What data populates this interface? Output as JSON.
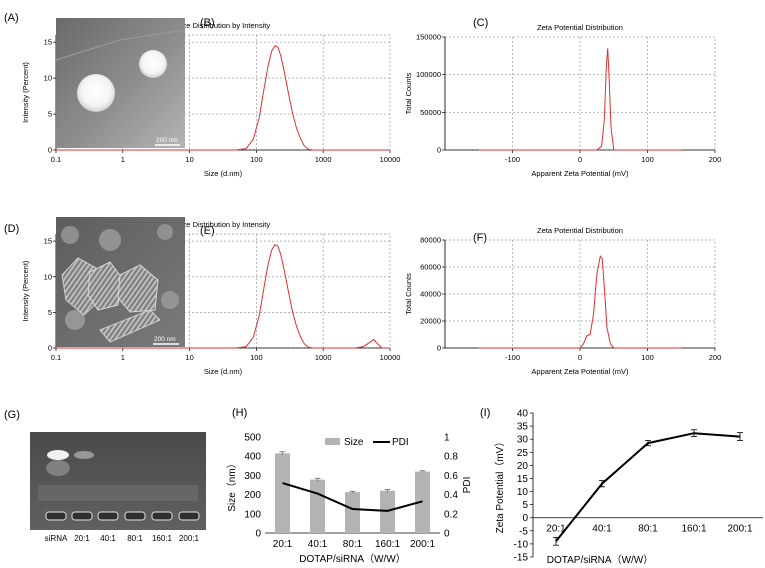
{
  "panels": [
    {
      "id": "A",
      "label": "(A)"
    },
    {
      "id": "B",
      "label": "(B)"
    },
    {
      "id": "C",
      "label": "(C)"
    },
    {
      "id": "D",
      "label": "(D)"
    },
    {
      "id": "E",
      "label": "(E)"
    },
    {
      "id": "F",
      "label": "(F)"
    },
    {
      "id": "G",
      "label": "(G)"
    },
    {
      "id": "H",
      "label": "(H)"
    },
    {
      "id": "I",
      "label": "(I)"
    }
  ],
  "micrographs": [
    {
      "panel": "A",
      "scale_bar": "200  nm"
    },
    {
      "panel": "D",
      "scale_bar": "200  nm"
    }
  ],
  "gel": {
    "lanes": [
      "siRNA",
      "20:1",
      "40:1",
      "80:1",
      "160:1",
      "200:1"
    ]
  },
  "chart_data": [
    {
      "panel": "A-B",
      "type": "line",
      "title": "Size Distribution by Intensity",
      "xlabel": "Size (d.nm)",
      "ylabel": "Intensity (Percent)",
      "xscale": "log",
      "xlim": [
        0.1,
        10000
      ],
      "ylim": [
        0,
        16
      ],
      "xticks": [
        "0.1",
        "1",
        "10",
        "100",
        "1000",
        "10000"
      ],
      "yticks": [
        "0",
        "5",
        "10",
        "15"
      ],
      "grid": true,
      "series": [
        {
          "color": "#e03030",
          "x": [
            0.1,
            50,
            70,
            90,
            110,
            130,
            150,
            170,
            190,
            210,
            230,
            260,
            300,
            350,
            400,
            460,
            520,
            600,
            700,
            10000
          ],
          "y": [
            0,
            0,
            0.2,
            1.5,
            4.5,
            8.5,
            11.8,
            13.8,
            14.5,
            14.3,
            13.2,
            11.0,
            8.0,
            5.0,
            3.0,
            1.5,
            0.6,
            0.1,
            0,
            0
          ]
        }
      ]
    },
    {
      "panel": "C",
      "type": "line",
      "title": "Zeta Potential Distribution",
      "xlabel": "Apparent Zeta Potential (mV)",
      "ylabel": "Total Counts",
      "xlim": [
        -200,
        200
      ],
      "ylim": [
        0,
        150000
      ],
      "xticks": [
        "-100",
        "0",
        "100",
        "200"
      ],
      "yticks": [
        "0",
        "50000",
        "100000",
        "150000"
      ],
      "grid": true,
      "series": [
        {
          "color": "#e03030",
          "x": [
            -150,
            25,
            32,
            36,
            39,
            41,
            43,
            46,
            50,
            150
          ],
          "y": [
            0,
            0,
            5000,
            40000,
            110000,
            135000,
            100000,
            30000,
            0,
            0
          ]
        }
      ]
    },
    {
      "panel": "D-E",
      "type": "line",
      "title": "Size Distribution by Intensity",
      "xlabel": "Size (d.nm)",
      "ylabel": "Intensity (Percent)",
      "xscale": "log",
      "xlim": [
        0.1,
        10000
      ],
      "ylim": [
        0,
        16
      ],
      "xticks": [
        "0.1",
        "1",
        "10",
        "100",
        "1000",
        "10000"
      ],
      "yticks": [
        "0",
        "5",
        "10",
        "15"
      ],
      "grid": true,
      "series": [
        {
          "color": "#e03030",
          "x": [
            0.1,
            50,
            70,
            90,
            110,
            130,
            150,
            170,
            190,
            210,
            230,
            260,
            300,
            350,
            400,
            460,
            520,
            600,
            700,
            3000,
            4000,
            5000,
            5700,
            6500,
            7500,
            10000
          ],
          "y": [
            0,
            0,
            0.2,
            1.5,
            4.5,
            8.5,
            11.8,
            13.8,
            14.5,
            14.3,
            13.2,
            11.0,
            8.0,
            5.0,
            3.0,
            1.5,
            0.6,
            0.1,
            0,
            0,
            0.2,
            0.8,
            1.2,
            0.6,
            0,
            0
          ]
        }
      ]
    },
    {
      "panel": "F",
      "type": "line",
      "title": "Zeta Potential Distribution",
      "xlabel": "Apparent Zeta Potential (mV)",
      "ylabel": "Total Counts",
      "xlim": [
        -200,
        200
      ],
      "ylim": [
        0,
        80000
      ],
      "xticks": [
        "-100",
        "0",
        "100",
        "200"
      ],
      "yticks": [
        "0",
        "20000",
        "40000",
        "60000",
        "80000"
      ],
      "grid": true,
      "series": [
        {
          "color": "#e03030",
          "x": [
            -150,
            0,
            5,
            10,
            15,
            20,
            25,
            30,
            33,
            36,
            40,
            45,
            50,
            150
          ],
          "y": [
            0,
            0,
            3000,
            9000,
            10000,
            25000,
            55000,
            68000,
            66000,
            45000,
            15000,
            3000,
            0,
            0
          ]
        }
      ]
    },
    {
      "panel": "H",
      "type": "bar",
      "xlabel": "DOTAP/siRNA（W/W）",
      "ylabel": "Size（nm）",
      "y2label": "PDI",
      "categories": [
        "20:1",
        "40:1",
        "80:1",
        "160:1",
        "200:1"
      ],
      "ylim": [
        0,
        500
      ],
      "yticks": [
        "0",
        "50",
        "100",
        "150",
        "200",
        "250",
        "300",
        "350",
        "400",
        "450",
        "500"
      ],
      "y2lim": [
        0,
        1
      ],
      "y2ticks": [
        "0",
        "0.2",
        "0.4",
        "0.6",
        "0.8",
        "1"
      ],
      "legend": "top",
      "series": [
        {
          "name": "Size",
          "type": "bar",
          "color": "#b3b3b3",
          "values": [
            415,
            278,
            213,
            220,
            320
          ],
          "errors": [
            8,
            7,
            4,
            7,
            4
          ]
        },
        {
          "name": "PDI",
          "type": "line",
          "color": "#000000",
          "axis": "y2",
          "values": [
            0.52,
            0.41,
            0.25,
            0.23,
            0.33
          ]
        }
      ]
    },
    {
      "panel": "I",
      "type": "line",
      "xlabel": "DOTAP/siRNA（W/W）",
      "ylabel": "Zeta Potential（mV）",
      "categories": [
        "20:1",
        "40:1",
        "80:1",
        "160:1",
        "200:1"
      ],
      "ylim": [
        -15,
        40
      ],
      "yticks": [
        "-15",
        "-10",
        "-5",
        "0",
        "5",
        "10",
        "15",
        "20",
        "25",
        "30",
        "35",
        "40"
      ],
      "series": [
        {
          "color": "#000000",
          "values": [
            -9,
            13,
            28.5,
            32.3,
            31
          ],
          "errors": [
            1.5,
            1.2,
            1.0,
            1.3,
            1.5
          ]
        }
      ]
    }
  ]
}
